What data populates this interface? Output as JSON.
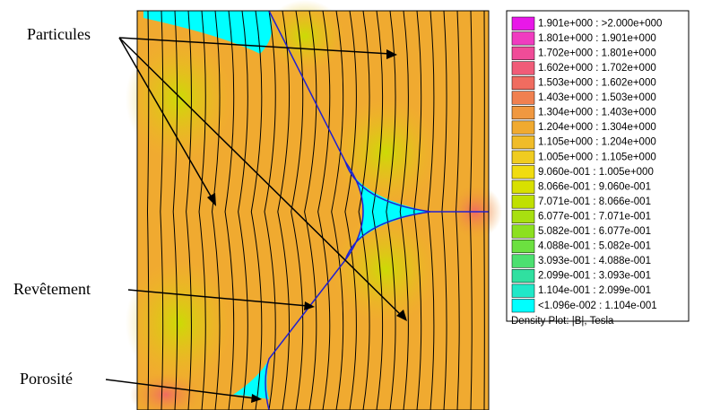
{
  "annotations": [
    "Particules",
    "Revêtement",
    "Porosité"
  ],
  "legend": {
    "entries": [
      {
        "label": "1.901e+000 : >2.000e+000",
        "color": "#e818e8"
      },
      {
        "label": "1.801e+000 : 1.901e+000",
        "color": "#f03cc0"
      },
      {
        "label": "1.702e+000 : 1.801e+000",
        "color": "#f04c98"
      },
      {
        "label": "1.602e+000 : 1.702e+000",
        "color": "#f05c78"
      },
      {
        "label": "1.503e+000 : 1.602e+000",
        "color": "#f06c60"
      },
      {
        "label": "1.403e+000 : 1.503e+000",
        "color": "#f08050"
      },
      {
        "label": "1.304e+000 : 1.403e+000",
        "color": "#f09840"
      },
      {
        "label": "1.204e+000 : 1.304e+000",
        "color": "#f0aa30"
      },
      {
        "label": "1.105e+000 : 1.204e+000",
        "color": "#f0bc28"
      },
      {
        "label": "1.005e+000 : 1.105e+000",
        "color": "#f0cc20"
      },
      {
        "label": "9.060e-001 : 1.005e+000",
        "color": "#f0dc10"
      },
      {
        "label": "8.066e-001 : 9.060e-001",
        "color": "#d8e000"
      },
      {
        "label": "7.071e-001 : 8.066e-001",
        "color": "#c0e000"
      },
      {
        "label": "6.077e-001 : 7.071e-001",
        "color": "#a8e010"
      },
      {
        "label": "5.082e-001 : 6.077e-001",
        "color": "#8ce020"
      },
      {
        "label": "4.088e-001 : 5.082e-001",
        "color": "#6ce040"
      },
      {
        "label": "3.093e-001 : 4.088e-001",
        "color": "#4ce070"
      },
      {
        "label": "2.099e-001 : 3.093e-001",
        "color": "#30e0a0"
      },
      {
        "label": "1.104e-001 : 2.099e-001",
        "color": "#20e8c8"
      },
      {
        "label": "<1.096e-002 : 1.104e-001",
        "color": "#00ffff"
      }
    ],
    "title": "Density Plot: |B|, Tesla"
  }
}
